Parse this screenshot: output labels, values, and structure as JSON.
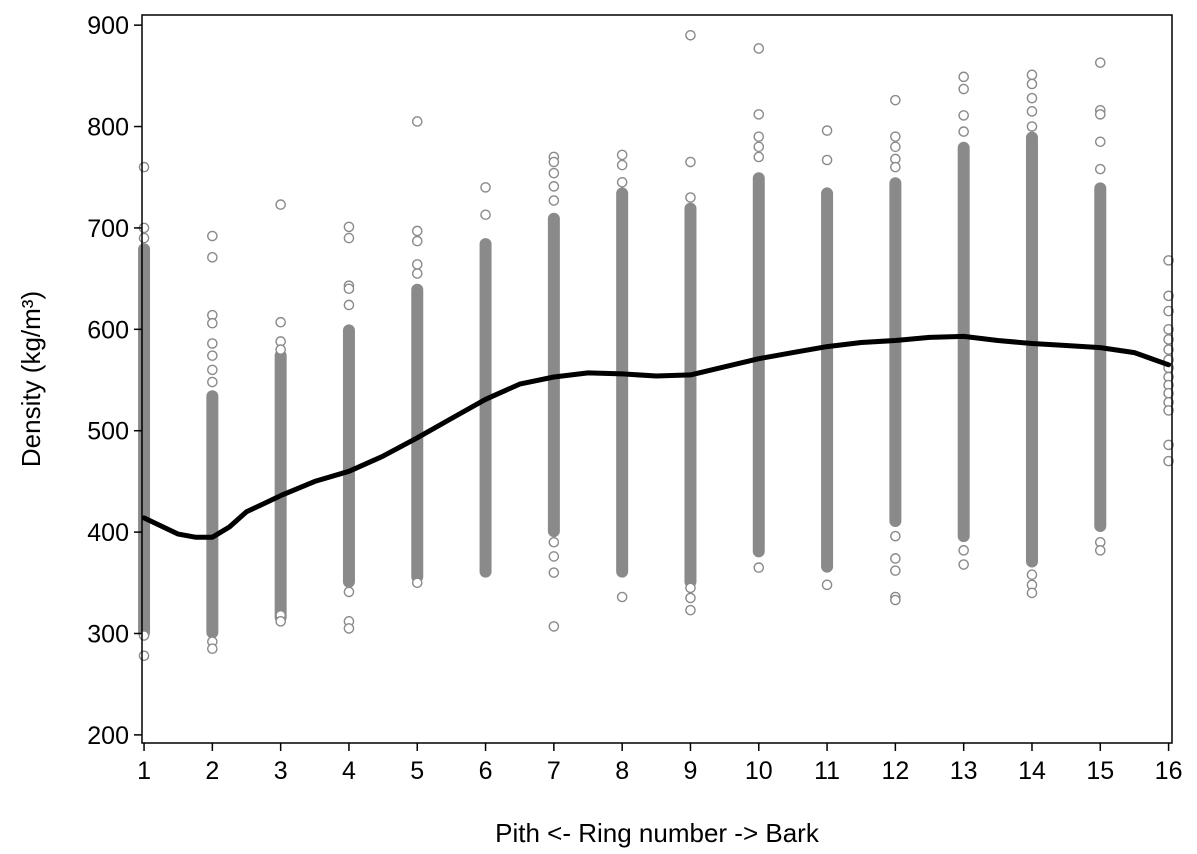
{
  "chart_data": {
    "type": "scatter",
    "title": "",
    "xlabel": "Pith <- Ring number -> Bark",
    "ylabel": "Density (kg/m³)",
    "xlim": [
      0.97,
      16.05
    ],
    "ylim": [
      192,
      910
    ],
    "x_ticks": [
      1,
      2,
      3,
      4,
      5,
      6,
      7,
      8,
      9,
      10,
      11,
      12,
      13,
      14,
      15,
      16
    ],
    "y_ticks": [
      200,
      300,
      400,
      500,
      600,
      700,
      800,
      900
    ],
    "grid": false,
    "legend": "none",
    "colors": {
      "points": "#8a8a8a",
      "trend": "#000000",
      "axes": "#000000"
    },
    "observations": {
      "marker": "open-circle",
      "bands": [
        {
          "x": 1,
          "min": 300,
          "max": 680
        },
        {
          "x": 2,
          "min": 300,
          "max": 535
        },
        {
          "x": 3,
          "min": 315,
          "max": 575
        },
        {
          "x": 4,
          "min": 350,
          "max": 600
        },
        {
          "x": 5,
          "min": 355,
          "max": 640
        },
        {
          "x": 6,
          "min": 360,
          "max": 685
        },
        {
          "x": 7,
          "min": 400,
          "max": 710
        },
        {
          "x": 8,
          "min": 360,
          "max": 735
        },
        {
          "x": 9,
          "min": 350,
          "max": 720
        },
        {
          "x": 10,
          "min": 380,
          "max": 750
        },
        {
          "x": 11,
          "min": 365,
          "max": 735
        },
        {
          "x": 12,
          "min": 410,
          "max": 745
        },
        {
          "x": 13,
          "min": 395,
          "max": 780
        },
        {
          "x": 14,
          "min": 370,
          "max": 790
        },
        {
          "x": 15,
          "min": 405,
          "max": 740
        }
      ],
      "outliers": [
        {
          "x": 1,
          "y": 760
        },
        {
          "x": 1,
          "y": 700
        },
        {
          "x": 1,
          "y": 690
        },
        {
          "x": 1,
          "y": 298
        },
        {
          "x": 1,
          "y": 278
        },
        {
          "x": 2,
          "y": 692
        },
        {
          "x": 2,
          "y": 671
        },
        {
          "x": 2,
          "y": 614
        },
        {
          "x": 2,
          "y": 606
        },
        {
          "x": 2,
          "y": 586
        },
        {
          "x": 2,
          "y": 574
        },
        {
          "x": 2,
          "y": 560
        },
        {
          "x": 2,
          "y": 548
        },
        {
          "x": 2,
          "y": 292
        },
        {
          "x": 2,
          "y": 285
        },
        {
          "x": 3,
          "y": 723
        },
        {
          "x": 3,
          "y": 607
        },
        {
          "x": 3,
          "y": 588
        },
        {
          "x": 3,
          "y": 580
        },
        {
          "x": 3,
          "y": 318
        },
        {
          "x": 3,
          "y": 312
        },
        {
          "x": 4,
          "y": 701
        },
        {
          "x": 4,
          "y": 690
        },
        {
          "x": 4,
          "y": 643
        },
        {
          "x": 4,
          "y": 640
        },
        {
          "x": 4,
          "y": 624
        },
        {
          "x": 4,
          "y": 341
        },
        {
          "x": 4,
          "y": 312
        },
        {
          "x": 4,
          "y": 305
        },
        {
          "x": 5,
          "y": 805
        },
        {
          "x": 5,
          "y": 697
        },
        {
          "x": 5,
          "y": 687
        },
        {
          "x": 5,
          "y": 664
        },
        {
          "x": 5,
          "y": 655
        },
        {
          "x": 5,
          "y": 350
        },
        {
          "x": 6,
          "y": 740
        },
        {
          "x": 6,
          "y": 713
        },
        {
          "x": 7,
          "y": 770
        },
        {
          "x": 7,
          "y": 765
        },
        {
          "x": 7,
          "y": 754
        },
        {
          "x": 7,
          "y": 741
        },
        {
          "x": 7,
          "y": 727
        },
        {
          "x": 7,
          "y": 390
        },
        {
          "x": 7,
          "y": 376
        },
        {
          "x": 7,
          "y": 360
        },
        {
          "x": 7,
          "y": 307
        },
        {
          "x": 8,
          "y": 772
        },
        {
          "x": 8,
          "y": 762
        },
        {
          "x": 8,
          "y": 745
        },
        {
          "x": 8,
          "y": 336
        },
        {
          "x": 9,
          "y": 890
        },
        {
          "x": 9,
          "y": 765
        },
        {
          "x": 9,
          "y": 730
        },
        {
          "x": 9,
          "y": 345
        },
        {
          "x": 9,
          "y": 335
        },
        {
          "x": 9,
          "y": 323
        },
        {
          "x": 10,
          "y": 877
        },
        {
          "x": 10,
          "y": 812
        },
        {
          "x": 10,
          "y": 790
        },
        {
          "x": 10,
          "y": 780
        },
        {
          "x": 10,
          "y": 770
        },
        {
          "x": 10,
          "y": 365
        },
        {
          "x": 11,
          "y": 796
        },
        {
          "x": 11,
          "y": 767
        },
        {
          "x": 11,
          "y": 348
        },
        {
          "x": 12,
          "y": 826
        },
        {
          "x": 12,
          "y": 790
        },
        {
          "x": 12,
          "y": 780
        },
        {
          "x": 12,
          "y": 768
        },
        {
          "x": 12,
          "y": 760
        },
        {
          "x": 12,
          "y": 396
        },
        {
          "x": 12,
          "y": 374
        },
        {
          "x": 12,
          "y": 362
        },
        {
          "x": 12,
          "y": 336
        },
        {
          "x": 12,
          "y": 333
        },
        {
          "x": 13,
          "y": 849
        },
        {
          "x": 13,
          "y": 837
        },
        {
          "x": 13,
          "y": 811
        },
        {
          "x": 13,
          "y": 795
        },
        {
          "x": 13,
          "y": 382
        },
        {
          "x": 13,
          "y": 368
        },
        {
          "x": 14,
          "y": 851
        },
        {
          "x": 14,
          "y": 842
        },
        {
          "x": 14,
          "y": 828
        },
        {
          "x": 14,
          "y": 815
        },
        {
          "x": 14,
          "y": 800
        },
        {
          "x": 14,
          "y": 358
        },
        {
          "x": 14,
          "y": 348
        },
        {
          "x": 14,
          "y": 340
        },
        {
          "x": 15,
          "y": 863
        },
        {
          "x": 15,
          "y": 816
        },
        {
          "x": 15,
          "y": 812
        },
        {
          "x": 15,
          "y": 785
        },
        {
          "x": 15,
          "y": 758
        },
        {
          "x": 15,
          "y": 390
        },
        {
          "x": 15,
          "y": 382
        },
        {
          "x": 16,
          "y": 668
        },
        {
          "x": 16,
          "y": 633
        },
        {
          "x": 16,
          "y": 618
        },
        {
          "x": 16,
          "y": 600
        },
        {
          "x": 16,
          "y": 590
        },
        {
          "x": 16,
          "y": 580
        },
        {
          "x": 16,
          "y": 570
        },
        {
          "x": 16,
          "y": 562
        },
        {
          "x": 16,
          "y": 553
        },
        {
          "x": 16,
          "y": 545
        },
        {
          "x": 16,
          "y": 537
        },
        {
          "x": 16,
          "y": 528
        },
        {
          "x": 16,
          "y": 520
        },
        {
          "x": 16,
          "y": 486
        },
        {
          "x": 16,
          "y": 470
        }
      ]
    },
    "trend": {
      "points": [
        [
          1.0,
          414
        ],
        [
          1.25,
          406
        ],
        [
          1.5,
          398
        ],
        [
          1.75,
          395
        ],
        [
          2.0,
          395
        ],
        [
          2.25,
          405
        ],
        [
          2.5,
          420
        ],
        [
          2.75,
          428
        ],
        [
          3.0,
          436
        ],
        [
          3.5,
          450
        ],
        [
          4.0,
          460
        ],
        [
          4.5,
          475
        ],
        [
          5.0,
          493
        ],
        [
          5.5,
          512
        ],
        [
          6.0,
          531
        ],
        [
          6.5,
          546
        ],
        [
          7.0,
          553
        ],
        [
          7.5,
          557
        ],
        [
          8.0,
          556
        ],
        [
          8.5,
          554
        ],
        [
          9.0,
          555
        ],
        [
          9.5,
          563
        ],
        [
          10.0,
          571
        ],
        [
          10.5,
          577
        ],
        [
          11.0,
          583
        ],
        [
          11.5,
          587
        ],
        [
          12.0,
          589
        ],
        [
          12.5,
          592
        ],
        [
          13.0,
          593
        ],
        [
          13.5,
          589
        ],
        [
          14.0,
          586
        ],
        [
          14.5,
          584
        ],
        [
          15.0,
          582
        ],
        [
          15.5,
          577
        ],
        [
          16.0,
          565
        ]
      ]
    }
  }
}
